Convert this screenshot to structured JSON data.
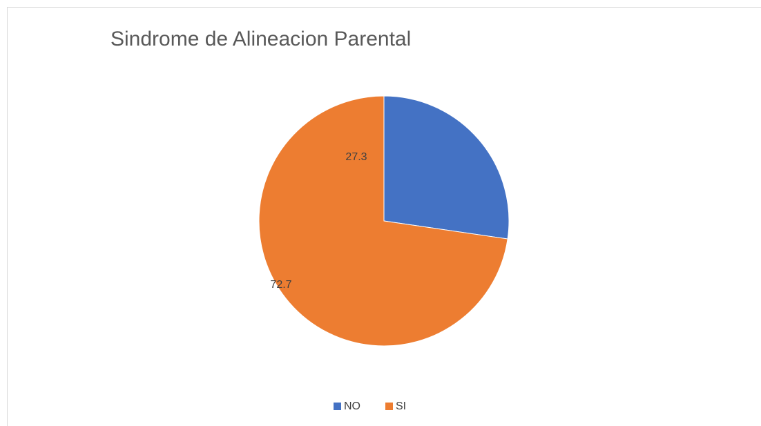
{
  "chart_data": {
    "type": "pie",
    "title": "Sindrome de Alineacion Parental",
    "categories": [
      "NO",
      "SI"
    ],
    "values": [
      27.3,
      72.7
    ],
    "colors": [
      "#4472c4",
      "#ed7d31"
    ],
    "legend": "bottom"
  }
}
